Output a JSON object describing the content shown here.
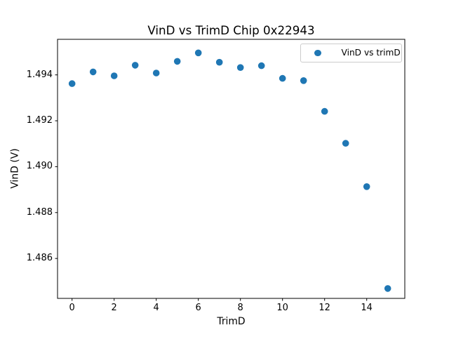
{
  "chart_data": {
    "type": "scatter",
    "title": "VinD vs TrimD Chip 0x22943",
    "xlabel": "TrimD",
    "ylabel": "VinD (V)",
    "x": [
      0,
      1,
      2,
      3,
      4,
      5,
      6,
      7,
      8,
      9,
      10,
      11,
      12,
      13,
      14,
      15
    ],
    "y": [
      1.49362,
      1.49413,
      1.49396,
      1.49442,
      1.49408,
      1.49459,
      1.49496,
      1.49455,
      1.49432,
      1.4944,
      1.49385,
      1.49375,
      1.49241,
      1.49102,
      1.48913,
      1.48469
    ],
    "series": [
      {
        "name": "VinD vs trimD",
        "marker": "circle",
        "color": "#1f77b4"
      }
    ],
    "xlim": [
      -0.69,
      15.81
    ],
    "ylim": [
      1.48426,
      1.49555
    ],
    "x_ticks": [
      0,
      2,
      4,
      6,
      8,
      10,
      12,
      14
    ],
    "x_tick_labels": [
      "0",
      "2",
      "4",
      "6",
      "8",
      "10",
      "12",
      "14"
    ],
    "y_ticks": [
      1.486,
      1.488,
      1.49,
      1.492,
      1.494
    ],
    "y_tick_labels": [
      "1.486",
      "1.488",
      "1.490",
      "1.492",
      "1.494"
    ],
    "grid": false,
    "legend": {
      "position": "upper right",
      "entries": [
        "VinD vs trimD"
      ]
    },
    "colors": {
      "marker": "#1f77b4",
      "spine": "#000000",
      "legend_border": "#cccccc",
      "background": "#ffffff"
    }
  }
}
